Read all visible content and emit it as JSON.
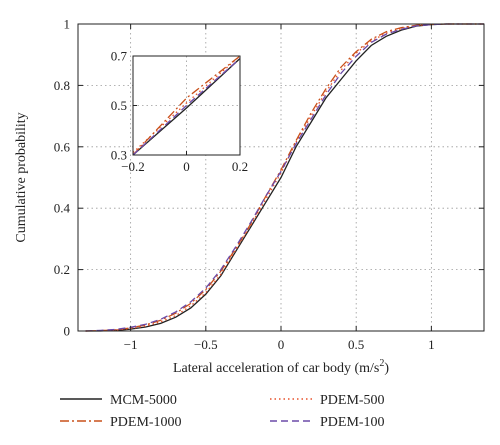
{
  "chart_data": {
    "type": "line",
    "xlabel_main": "Lateral acceleration of car body (m/s",
    "xlabel_sup": "2",
    "xlabel_close": ")",
    "ylabel": "Cumulative probability",
    "xlim": [
      -1.35,
      1.35
    ],
    "ylim": [
      0,
      1
    ],
    "xticks": [
      -1,
      -0.5,
      0,
      0.5,
      1
    ],
    "xtick_labels": [
      "−1",
      "−0.5",
      "0",
      "0.5",
      "1"
    ],
    "yticks": [
      0,
      0.2,
      0.4,
      0.6,
      0.8,
      1
    ],
    "ytick_labels": [
      "0",
      "0.2",
      "0.4",
      "0.6",
      "0.8",
      "1"
    ],
    "grid": true,
    "series": [
      {
        "name": "MCM-5000",
        "color": "#222222",
        "dash": "",
        "x": [
          -1.3,
          -1.2,
          -1.1,
          -1.0,
          -0.9,
          -0.8,
          -0.7,
          -0.6,
          -0.5,
          -0.4,
          -0.3,
          -0.2,
          -0.1,
          0.0,
          0.1,
          0.2,
          0.3,
          0.4,
          0.5,
          0.6,
          0.7,
          0.8,
          0.9,
          1.0,
          1.1,
          1.2,
          1.35
        ],
        "y": [
          0,
          0.0,
          0.002,
          0.006,
          0.013,
          0.025,
          0.045,
          0.075,
          0.12,
          0.18,
          0.26,
          0.34,
          0.42,
          0.5,
          0.6,
          0.68,
          0.76,
          0.82,
          0.88,
          0.93,
          0.96,
          0.98,
          0.993,
          0.998,
          1.0,
          1.0,
          1.0
        ]
      },
      {
        "name": "PDEM-500",
        "color": "#e8502a",
        "dash": "1.5,3",
        "x": [
          -1.3,
          -1.2,
          -1.1,
          -1.0,
          -0.9,
          -0.8,
          -0.7,
          -0.6,
          -0.5,
          -0.4,
          -0.3,
          -0.2,
          -0.1,
          0.0,
          0.1,
          0.2,
          0.3,
          0.4,
          0.5,
          0.6,
          0.7,
          0.8,
          0.9,
          1.0,
          1.1,
          1.2,
          1.35
        ],
        "y": [
          0,
          0.001,
          0.003,
          0.008,
          0.016,
          0.03,
          0.05,
          0.082,
          0.125,
          0.185,
          0.265,
          0.345,
          0.43,
          0.515,
          0.615,
          0.7,
          0.78,
          0.85,
          0.905,
          0.945,
          0.97,
          0.985,
          0.995,
          0.999,
          1.0,
          1.0,
          1.0
        ]
      },
      {
        "name": "PDEM-1000",
        "color": "#c8501a",
        "dash": "9,3,2,3",
        "x": [
          -1.3,
          -1.2,
          -1.1,
          -1.0,
          -0.9,
          -0.8,
          -0.7,
          -0.6,
          -0.5,
          -0.4,
          -0.3,
          -0.2,
          -0.1,
          0.0,
          0.1,
          0.2,
          0.3,
          0.4,
          0.5,
          0.6,
          0.7,
          0.8,
          0.9,
          1.0,
          1.1,
          1.2,
          1.35
        ],
        "y": [
          0,
          0.001,
          0.004,
          0.01,
          0.02,
          0.035,
          0.058,
          0.09,
          0.135,
          0.195,
          0.27,
          0.35,
          0.44,
          0.525,
          0.62,
          0.71,
          0.79,
          0.86,
          0.91,
          0.95,
          0.975,
          0.988,
          0.996,
          0.999,
          1.0,
          1.0,
          1.0
        ]
      },
      {
        "name": "PDEM-100",
        "color": "#6b4aa8",
        "dash": "7,4",
        "x": [
          -1.3,
          -1.2,
          -1.1,
          -1.0,
          -0.9,
          -0.8,
          -0.7,
          -0.6,
          -0.5,
          -0.4,
          -0.3,
          -0.2,
          -0.1,
          0.0,
          0.1,
          0.2,
          0.3,
          0.4,
          0.5,
          0.6,
          0.7,
          0.8,
          0.9,
          1.0,
          1.1,
          1.2,
          1.35
        ],
        "y": [
          0,
          0.002,
          0.005,
          0.012,
          0.022,
          0.038,
          0.062,
          0.095,
          0.14,
          0.2,
          0.275,
          0.355,
          0.44,
          0.52,
          0.61,
          0.69,
          0.77,
          0.84,
          0.895,
          0.94,
          0.967,
          0.983,
          0.994,
          0.998,
          1.0,
          1.0,
          1.0
        ]
      }
    ],
    "inset": {
      "xlim": [
        -0.2,
        0.2
      ],
      "ylim": [
        0.3,
        0.7
      ],
      "xticks": [
        -0.2,
        0,
        0.2
      ],
      "xtick_labels": [
        "−0.2",
        "0",
        "0.2"
      ],
      "yticks": [
        0.3,
        0.5,
        0.7
      ],
      "ytick_labels": [
        "0.3",
        "0.5",
        "0.7"
      ],
      "grid": true,
      "series": [
        {
          "name": "MCM-5000",
          "x": [
            -0.2,
            0.0,
            0.2
          ],
          "y": [
            0.3,
            0.49,
            0.69
          ]
        },
        {
          "name": "PDEM-500",
          "x": [
            -0.2,
            0.0,
            0.2
          ],
          "y": [
            0.31,
            0.51,
            0.7
          ]
        },
        {
          "name": "PDEM-1000",
          "x": [
            -0.2,
            0.0,
            0.2
          ],
          "y": [
            0.3,
            0.53,
            0.7
          ]
        },
        {
          "name": "PDEM-100",
          "x": [
            -0.2,
            0.0,
            0.2
          ],
          "y": [
            0.3,
            0.5,
            0.69
          ]
        }
      ]
    }
  },
  "legend": {
    "entries": [
      {
        "series": "MCM-5000",
        "label": "MCM-5000"
      },
      {
        "series": "PDEM-500",
        "label": "PDEM-500"
      },
      {
        "series": "PDEM-1000",
        "label": "PDEM-1000"
      },
      {
        "series": "PDEM-100",
        "label": "PDEM-100"
      }
    ]
  }
}
